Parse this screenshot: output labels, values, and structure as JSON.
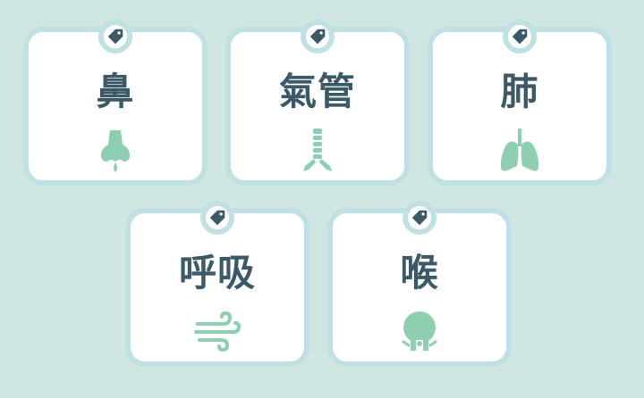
{
  "cards": [
    {
      "label": "鼻",
      "icon": "nose-icon"
    },
    {
      "label": "氣管",
      "icon": "trachea-icon"
    },
    {
      "label": "肺",
      "icon": "lungs-icon"
    },
    {
      "label": "呼吸",
      "icon": "wind-icon"
    },
    {
      "label": "喉",
      "icon": "throat-icon"
    }
  ],
  "colors": {
    "background": "#cfe6e2",
    "card_border": "#bfe1e3",
    "card_fill": "#ffffff",
    "label_text": "#3b5967",
    "icon_green": "#8dcfb0",
    "tag_icon": "#3b5967"
  }
}
